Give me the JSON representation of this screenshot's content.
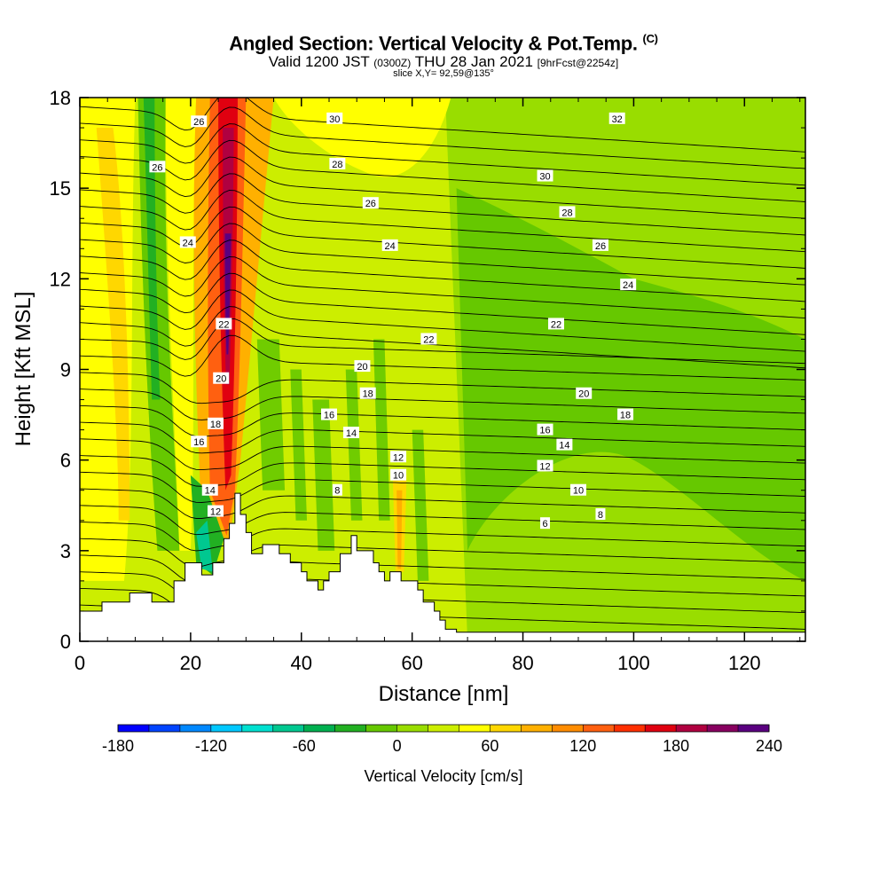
{
  "title": {
    "main": "Angled Section: Vertical Velocity & Pot.Temp.",
    "copyright": "(C)",
    "valid_a": "Valid 1200 JST",
    "valid_z": "(0300Z)",
    "valid_b": "THU 28 Jan 2021",
    "fcst": "[9hrFcst@2254z]",
    "slice": "slice X,Y= 92,59@135°"
  },
  "chart_data": {
    "type": "heatmap",
    "xlabel": "Distance [nm]",
    "ylabel": "Height [Kft MSL]",
    "xlim": [
      0,
      131
    ],
    "ylim": [
      0,
      18
    ],
    "xticks": [
      0,
      20,
      40,
      60,
      80,
      100,
      120
    ],
    "yticks": [
      0,
      3,
      6,
      9,
      12,
      15,
      18
    ],
    "grid": false,
    "colorbar": {
      "label": "Vertical Velocity [cm/s]",
      "min": -180,
      "max": 240,
      "step": 20,
      "tick_labels": [
        -180,
        -120,
        -60,
        0,
        60,
        120,
        180,
        240
      ],
      "colors": [
        "#0000ff",
        "#0044ff",
        "#0088ff",
        "#00c8ff",
        "#00e0d0",
        "#00c890",
        "#00b050",
        "#22b022",
        "#66c800",
        "#99dd00",
        "#ccee00",
        "#ffff00",
        "#ffd700",
        "#ffb000",
        "#ff8c00",
        "#ff6010",
        "#ff3000",
        "#e00010",
        "#b00040",
        "#880060",
        "#5a0080"
      ]
    },
    "vertical_velocity_features": [
      {
        "x": 27,
        "y_range": [
          5,
          18
        ],
        "value": 230,
        "description_color": "purple core"
      },
      {
        "x": 26,
        "y_range": [
          3,
          18
        ],
        "value": 150
      },
      {
        "x": 30,
        "y_range": [
          3,
          18
        ],
        "value": 80
      },
      {
        "x": 13,
        "y_range": [
          3,
          18
        ],
        "value": -50
      },
      {
        "x": 5,
        "y_range": [
          1,
          16
        ],
        "value": 50
      },
      {
        "x": 22,
        "y_range": [
          2,
          6
        ],
        "value": -80
      },
      {
        "x": 58,
        "y_range": [
          2,
          5
        ],
        "value": 60
      }
    ],
    "terrain_kft": {
      "x": [
        0,
        4,
        4,
        9,
        9,
        13,
        13,
        17,
        17,
        19,
        19,
        22,
        22,
        24,
        24,
        26,
        26,
        27,
        27,
        28,
        28,
        29,
        29,
        30,
        30,
        31,
        31,
        33,
        33,
        36,
        36,
        38,
        38,
        40,
        40,
        41,
        41,
        43,
        43,
        44,
        44,
        45,
        45,
        47,
        47,
        49,
        49,
        50,
        50,
        53,
        53,
        54,
        54,
        55,
        55,
        56,
        56,
        58,
        58,
        61,
        61,
        62,
        62,
        64,
        64,
        65,
        65,
        66,
        66,
        68,
        68,
        71,
        71,
        131
      ],
      "y": [
        1,
        1,
        1.3,
        1.3,
        1.6,
        1.6,
        1.3,
        1.3,
        2,
        2,
        2.6,
        2.6,
        2.2,
        2.2,
        2.6,
        2.6,
        3.4,
        3.4,
        3.9,
        3.9,
        4.9,
        4.9,
        4.2,
        4.2,
        3.6,
        3.6,
        2.9,
        2.9,
        3.2,
        3.2,
        2.9,
        2.9,
        2.6,
        2.6,
        2.3,
        2.3,
        2.0,
        2.0,
        1.7,
        1.7,
        2.0,
        2.0,
        2.3,
        2.3,
        2.9,
        2.9,
        3.5,
        3.5,
        3.0,
        3.0,
        2.6,
        2.6,
        2.3,
        2.3,
        2.0,
        2.0,
        2.3,
        2.3,
        2.0,
        2.0,
        1.7,
        1.7,
        1.3,
        1.3,
        1.0,
        1.0,
        0.7,
        0.7,
        0.4,
        0.4,
        0.3,
        0.3,
        0.3,
        0.3
      ]
    },
    "contour_levels": [
      6,
      8,
      10,
      12,
      14,
      16,
      18,
      20,
      22,
      24,
      26,
      28,
      30,
      32
    ],
    "contour_labels": [
      {
        "text": "26",
        "x": 21.5,
        "y": 17.2
      },
      {
        "text": "26",
        "x": 14,
        "y": 15.7
      },
      {
        "text": "30",
        "x": 46,
        "y": 17.3
      },
      {
        "text": "32",
        "x": 97,
        "y": 17.3
      },
      {
        "text": "28",
        "x": 46.5,
        "y": 15.8
      },
      {
        "text": "30",
        "x": 84,
        "y": 15.4
      },
      {
        "text": "26",
        "x": 52.5,
        "y": 14.5
      },
      {
        "text": "28",
        "x": 88,
        "y": 14.2
      },
      {
        "text": "24",
        "x": 19.5,
        "y": 13.2
      },
      {
        "text": "24",
        "x": 56,
        "y": 13.1
      },
      {
        "text": "26",
        "x": 94,
        "y": 13.1
      },
      {
        "text": "24",
        "x": 99,
        "y": 11.8
      },
      {
        "text": "22",
        "x": 26,
        "y": 10.5
      },
      {
        "text": "22",
        "x": 86,
        "y": 10.5
      },
      {
        "text": "22",
        "x": 63,
        "y": 10.0
      },
      {
        "text": "20",
        "x": 51,
        "y": 9.1
      },
      {
        "text": "20",
        "x": 25.5,
        "y": 8.7
      },
      {
        "text": "18",
        "x": 52,
        "y": 8.2
      },
      {
        "text": "20",
        "x": 91,
        "y": 8.2
      },
      {
        "text": "16",
        "x": 45,
        "y": 7.5
      },
      {
        "text": "18",
        "x": 98.5,
        "y": 7.5
      },
      {
        "text": "18",
        "x": 24.5,
        "y": 7.2
      },
      {
        "text": "14",
        "x": 49,
        "y": 6.9
      },
      {
        "text": "16",
        "x": 84,
        "y": 7.0
      },
      {
        "text": "16",
        "x": 21.5,
        "y": 6.6
      },
      {
        "text": "14",
        "x": 87.5,
        "y": 6.5
      },
      {
        "text": "12",
        "x": 57.5,
        "y": 6.1
      },
      {
        "text": "12",
        "x": 84,
        "y": 5.8
      },
      {
        "text": "10",
        "x": 57.5,
        "y": 5.5
      },
      {
        "text": "14",
        "x": 23.5,
        "y": 5.0
      },
      {
        "text": "8",
        "x": 46.5,
        "y": 5.0
      },
      {
        "text": "10",
        "x": 90,
        "y": 5.0
      },
      {
        "text": "12",
        "x": 24.5,
        "y": 4.3
      },
      {
        "text": "8",
        "x": 94,
        "y": 4.2
      },
      {
        "text": "6",
        "x": 84,
        "y": 3.9
      }
    ]
  }
}
